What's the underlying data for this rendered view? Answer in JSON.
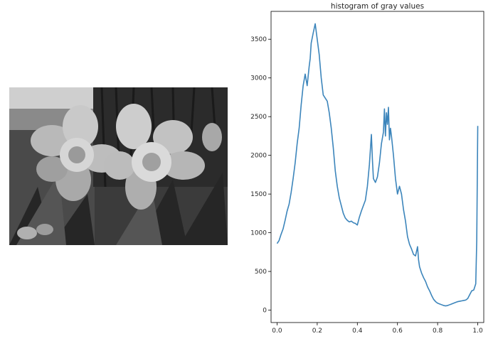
{
  "photo": {
    "subject": "grayscale photograph of daffodils in front of a tree trunk"
  },
  "chart_data": {
    "type": "line",
    "title": "histogram of gray values",
    "xlabel": "",
    "ylabel": "",
    "xlim": [
      -0.03,
      1.03
    ],
    "ylim": [
      -160,
      3860
    ],
    "xticks": [
      0.0,
      0.2,
      0.4,
      0.6,
      0.8,
      1.0
    ],
    "xtick_labels": [
      "0.0",
      "0.2",
      "0.4",
      "0.6",
      "0.8",
      "1.0"
    ],
    "yticks": [
      0,
      500,
      1000,
      1500,
      2000,
      2500,
      3000,
      3500
    ],
    "ytick_labels": [
      "0",
      "500",
      "1000",
      "1500",
      "2000",
      "2500",
      "3000",
      "3500"
    ],
    "grid": false,
    "line_color": "#3c85bb",
    "series": [
      {
        "x": [
          0.0,
          0.01,
          0.02,
          0.03,
          0.04,
          0.05,
          0.06,
          0.07,
          0.08,
          0.09,
          0.1,
          0.11,
          0.12,
          0.13,
          0.14,
          0.15,
          0.16,
          0.165,
          0.17,
          0.18,
          0.19,
          0.2,
          0.21,
          0.22,
          0.23,
          0.24,
          0.25,
          0.26,
          0.27,
          0.28,
          0.29,
          0.3,
          0.31,
          0.32,
          0.33,
          0.34,
          0.35,
          0.36,
          0.37,
          0.38,
          0.39,
          0.4,
          0.41,
          0.42,
          0.43,
          0.44,
          0.45,
          0.46,
          0.47,
          0.475,
          0.48,
          0.49,
          0.5,
          0.51,
          0.52,
          0.53,
          0.535,
          0.54,
          0.545,
          0.55,
          0.555,
          0.56,
          0.565,
          0.57,
          0.58,
          0.59,
          0.6,
          0.61,
          0.62,
          0.63,
          0.64,
          0.65,
          0.66,
          0.67,
          0.68,
          0.69,
          0.7,
          0.705,
          0.71,
          0.72,
          0.73,
          0.74,
          0.75,
          0.76,
          0.77,
          0.78,
          0.79,
          0.8,
          0.81,
          0.82,
          0.83,
          0.84,
          0.85,
          0.86,
          0.87,
          0.88,
          0.89,
          0.9,
          0.91,
          0.92,
          0.93,
          0.94,
          0.95,
          0.96,
          0.97,
          0.98,
          0.99,
          0.995,
          1.0
        ],
        "y": [
          860,
          900,
          980,
          1050,
          1160,
          1280,
          1370,
          1520,
          1700,
          1900,
          2150,
          2350,
          2650,
          2900,
          3050,
          2900,
          3150,
          3250,
          3450,
          3580,
          3700,
          3500,
          3300,
          3000,
          2780,
          2740,
          2700,
          2550,
          2350,
          2100,
          1800,
          1600,
          1450,
          1350,
          1250,
          1190,
          1160,
          1140,
          1150,
          1130,
          1120,
          1100,
          1200,
          1280,
          1350,
          1420,
          1600,
          1880,
          2270,
          1950,
          1700,
          1650,
          1720,
          1900,
          2150,
          2300,
          2600,
          2250,
          2550,
          2400,
          2620,
          2200,
          2350,
          2250,
          2000,
          1700,
          1500,
          1600,
          1500,
          1300,
          1150,
          950,
          850,
          790,
          720,
          700,
          820,
          650,
          560,
          480,
          420,
          370,
          300,
          250,
          190,
          140,
          110,
          90,
          80,
          70,
          60,
          55,
          60,
          70,
          80,
          90,
          100,
          110,
          115,
          120,
          125,
          130,
          150,
          200,
          250,
          260,
          340,
          900,
          2380
        ]
      }
    ]
  }
}
